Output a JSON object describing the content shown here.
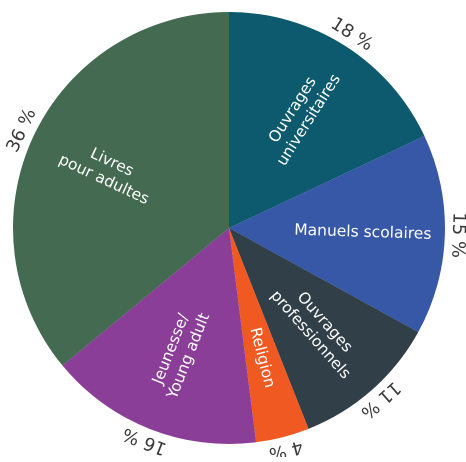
{
  "chart_data": {
    "type": "pie",
    "title": "",
    "start_angle_deg": 0,
    "direction": "clockwise",
    "slices": [
      {
        "label_lines": [
          "Ouvrages",
          "universitaires"
        ],
        "value": 18,
        "value_label": "18 %",
        "color": "#0d5a6e"
      },
      {
        "label_lines": [
          "Manuels scolaires"
        ],
        "value": 15,
        "value_label": "15 %",
        "color": "#3757a7"
      },
      {
        "label_lines": [
          "Ouvrages",
          "professionnels"
        ],
        "value": 11,
        "value_label": "11 %",
        "color": "#303f48"
      },
      {
        "label_lines": [
          "Religion"
        ],
        "value": 4,
        "value_label": "4 %",
        "color": "#f05a22"
      },
      {
        "label_lines": [
          "Jeunesse/",
          "Young adult"
        ],
        "value": 16,
        "value_label": "16 %",
        "color": "#8b3e97"
      },
      {
        "label_lines": [
          "Livres",
          "pour adultes"
        ],
        "value": 36,
        "value_label": "36 %",
        "color": "#446a51"
      }
    ]
  }
}
